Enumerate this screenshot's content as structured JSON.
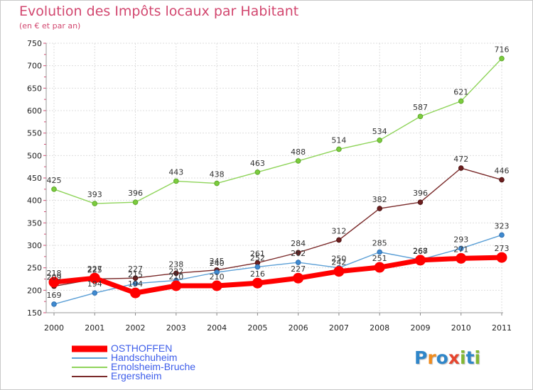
{
  "header": {
    "title": "Evolution des Impôts locaux par Habitant",
    "subtitle": "(en € et par an)"
  },
  "logo": {
    "text": "Proxiti",
    "letters": [
      "P",
      "r",
      "o",
      "x",
      "i",
      "t",
      "i"
    ],
    "colors": [
      "#2f86c9",
      "#f08b1d",
      "#2f86c9",
      "#e6452e",
      "#82b834",
      "#2f86c9",
      "#82b834"
    ]
  },
  "chart_data": {
    "type": "line",
    "title": "Evolution des Impôts locaux par Habitant",
    "subtitle": "(en € et par an)",
    "xlabel": "",
    "ylabel": "",
    "x": [
      "2000",
      "2001",
      "2002",
      "2003",
      "2004",
      "2005",
      "2006",
      "2007",
      "2008",
      "2009",
      "2010",
      "2011"
    ],
    "ylim": [
      150,
      750
    ],
    "yticks": [
      150,
      200,
      250,
      300,
      350,
      400,
      450,
      500,
      550,
      600,
      650,
      700,
      750
    ],
    "grid": true,
    "legend_position": "bottom-left",
    "series": [
      {
        "name": "OSTHOFFEN",
        "color": "#ff0000",
        "values": [
          218,
          227,
          194,
          210,
          210,
          216,
          227,
          242,
          251,
          267,
          271,
          273
        ]
      },
      {
        "name": "Handschuheim",
        "color": "#5b9fd6",
        "values": [
          169,
          194,
          215,
          222,
          240,
          252,
          262,
          250,
          285,
          268,
          293,
          323
        ]
      },
      {
        "name": "Ernolsheim-Bruche",
        "color": "#8fd45a",
        "values": [
          425,
          393,
          396,
          443,
          438,
          463,
          488,
          514,
          534,
          587,
          621,
          716
        ]
      },
      {
        "name": "Ergersheim",
        "color": "#7a2a2a",
        "values": [
          209,
          225,
          227,
          238,
          245,
          261,
          284,
          312,
          382,
          396,
          472,
          446
        ]
      }
    ]
  }
}
